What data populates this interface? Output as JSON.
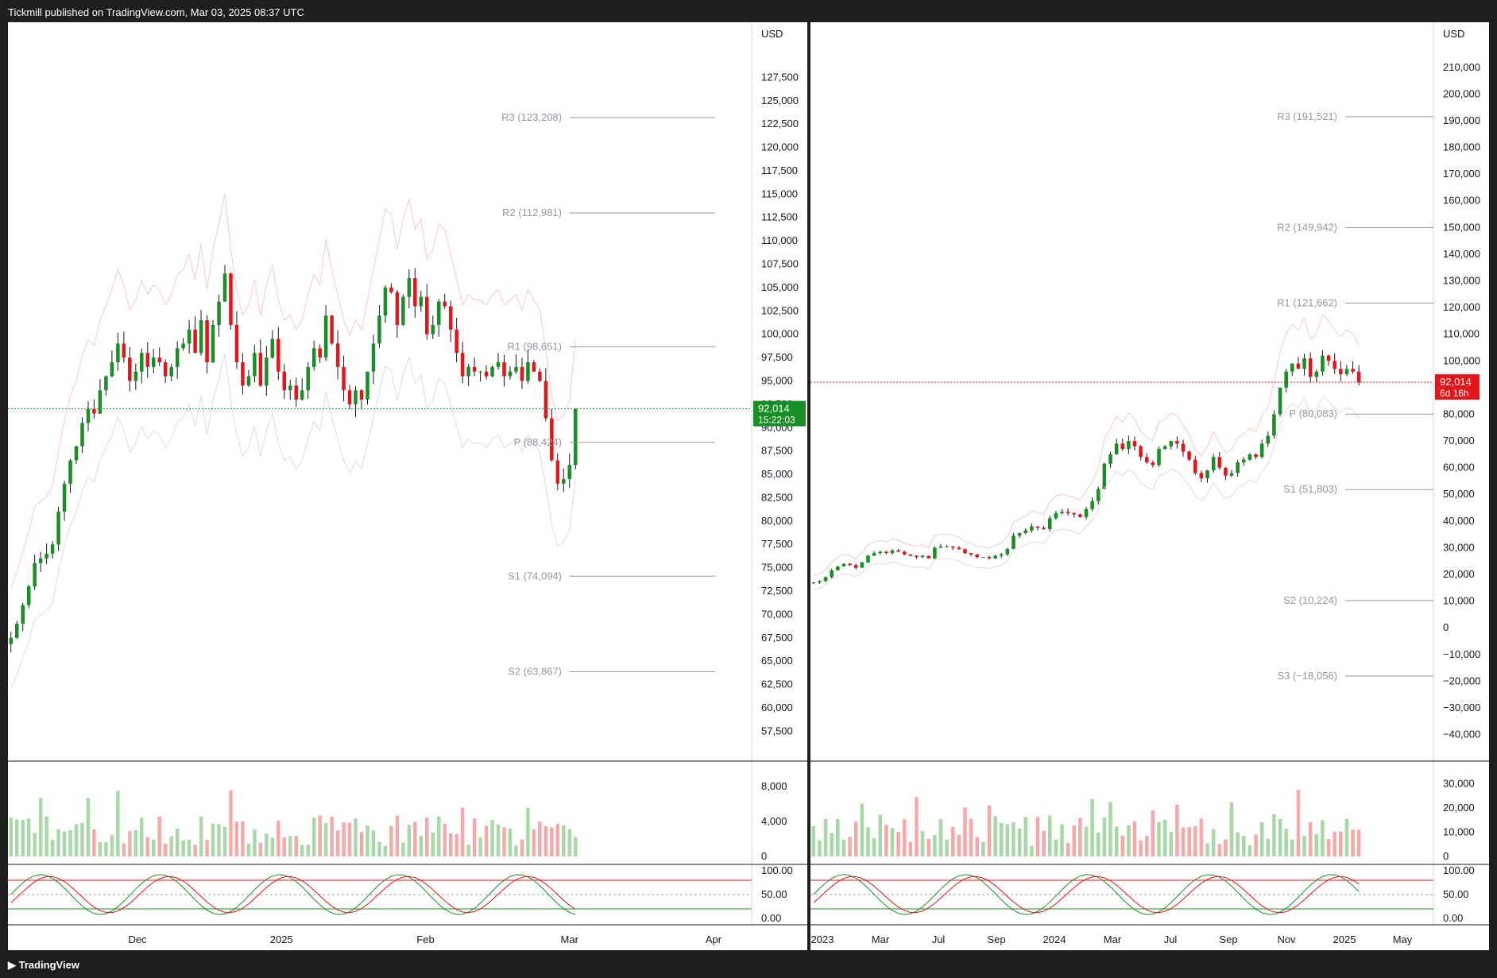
{
  "header": {
    "publisher": "Tickmill published on TradingView.com, Mar 03, 2025 08:37 UTC"
  },
  "footer": {
    "brand": "TradingView"
  },
  "colors": {
    "up": "#089981",
    "down": "#f23645",
    "candle_up": "#1a8e26",
    "candle_down": "#e4141b",
    "pivot_line": "#9598a1"
  },
  "chart_data": [
    {
      "type": "candlestick",
      "panel": "left",
      "currency": "USD",
      "x_tick_labels": [
        "Dec",
        "2025",
        "Feb",
        "Mar",
        "Apr"
      ],
      "y_tick_labels": [
        "127,500",
        "125,000",
        "122,500",
        "120,000",
        "117,500",
        "115,000",
        "112,500",
        "110,000",
        "107,500",
        "105,000",
        "102,500",
        "100,000",
        "97,500",
        "95,000",
        "92,500",
        "90,000",
        "87,500",
        "85,000",
        "82,500",
        "80,000",
        "77,500",
        "75,000",
        "72,500",
        "70,000",
        "67,500",
        "65,000",
        "62,500",
        "60,000",
        "57,500"
      ],
      "ylim": [
        56000,
        130000
      ],
      "pivots": [
        {
          "label": "R3 (123,208)",
          "value": 123208
        },
        {
          "label": "R2 (112,981)",
          "value": 112981
        },
        {
          "label": "R1 (98,651)",
          "value": 98651
        },
        {
          "label": "P (88,424)",
          "value": 88424
        },
        {
          "label": "S1 (74,094)",
          "value": 74094
        },
        {
          "label": "S2 (63,867)",
          "value": 63867
        }
      ],
      "last_price": "92,014",
      "countdown": "15:22:03",
      "volume": {
        "tick_labels": [
          "8,000",
          "4,000",
          "0"
        ],
        "ylim": [
          0,
          10000
        ]
      },
      "oscillator": {
        "tick_labels": [
          "100.00",
          "50.00",
          "0.00"
        ],
        "ylim": [
          0,
          100
        ]
      },
      "close_series": [
        67500,
        69000,
        71000,
        73000,
        75500,
        76000,
        76500,
        77500,
        81000,
        84000,
        86500,
        88000,
        90500,
        92000,
        91500,
        94000,
        95500,
        97000,
        99000,
        97500,
        95000,
        96000,
        98000,
        96500,
        97500,
        97000,
        95500,
        96500,
        98500,
        99000,
        100500,
        98000,
        101500,
        97000,
        101000,
        103500,
        106500,
        101000,
        97000,
        94500,
        95500,
        98000,
        94500,
        97500,
        99500,
        96000,
        94000,
        94500,
        93000,
        94000,
        96500,
        98500,
        97500,
        102000,
        99000,
        96500,
        94000,
        92500,
        94000,
        93000,
        96000,
        99000,
        102000,
        105000,
        104500,
        101000,
        104000,
        106000,
        103000,
        104000,
        100000,
        101000,
        103500,
        103000,
        100500,
        98000,
        95500,
        96500,
        96000,
        96000,
        95500,
        96500,
        97000,
        95500,
        96000,
        96500,
        95000,
        97000,
        96000,
        95000,
        91000,
        86500,
        84000,
        84500,
        86000,
        92014
      ]
    },
    {
      "type": "candlestick",
      "panel": "right",
      "currency": "USD",
      "x_tick_labels": [
        "2023",
        "Mar",
        "Jul",
        "Sep",
        "2024",
        "Mar",
        "Jul",
        "Sep",
        "Nov",
        "2025",
        "May"
      ],
      "y_tick_labels": [
        "210,000",
        "200,000",
        "190,000",
        "180,000",
        "170,000",
        "160,000",
        "150,000",
        "140,000",
        "130,000",
        "120,000",
        "110,000",
        "100,000",
        "90,000",
        "80,000",
        "70,000",
        "60,000",
        "50,000",
        "40,000",
        "30,000",
        "20,000",
        "10,000",
        "0",
        "−10,000",
        "−20,000",
        "−30,000",
        "−40,000"
      ],
      "ylim": [
        -44000,
        215000
      ],
      "pivots": [
        {
          "label": "R3 (191,521)",
          "value": 191521
        },
        {
          "label": "R2 (149,942)",
          "value": 149942
        },
        {
          "label": "R1 (121,662)",
          "value": 121662
        },
        {
          "label": "P (80,083)",
          "value": 80083
        },
        {
          "label": "S1 (51,803)",
          "value": 51803
        },
        {
          "label": "S2 (10,224)",
          "value": 10224
        },
        {
          "label": "S3 (−18,056)",
          "value": -18056
        }
      ],
      "last_price": "92,014",
      "countdown": "6d 16h",
      "volume": {
        "tick_labels": [
          "30,000",
          "20,000",
          "10,000",
          "0"
        ],
        "ylim": [
          0,
          36000
        ]
      },
      "oscillator": {
        "tick_labels": [
          "100.00",
          "50.00",
          "0.00"
        ],
        "ylim": [
          0,
          100
        ]
      },
      "close_series": [
        17000,
        17500,
        19000,
        21500,
        23000,
        24000,
        23500,
        22500,
        24500,
        27000,
        28000,
        28500,
        28000,
        29000,
        28500,
        27500,
        27000,
        26500,
        27000,
        26000,
        30000,
        30500,
        30500,
        30000,
        29500,
        28000,
        27500,
        26500,
        26500,
        26000,
        27000,
        27500,
        29500,
        34500,
        35500,
        36500,
        38000,
        37500,
        37000,
        41000,
        43000,
        43500,
        43000,
        42500,
        41500,
        44500,
        47500,
        52000,
        61500,
        65000,
        69000,
        67000,
        70000,
        68000,
        64000,
        62000,
        61000,
        67000,
        68000,
        70000,
        69000,
        66000,
        63000,
        58000,
        56000,
        59000,
        64000,
        60000,
        57000,
        58000,
        62000,
        63000,
        65000,
        64000,
        69000,
        72000,
        80000,
        90000,
        96000,
        99000,
        97000,
        101000,
        94000,
        96000,
        102000,
        100000,
        97000,
        95000,
        97000,
        96000,
        92014
      ]
    }
  ]
}
